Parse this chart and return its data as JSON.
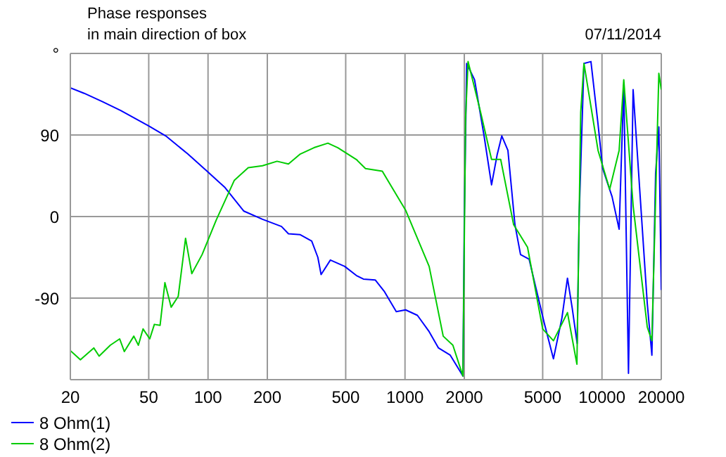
{
  "chart_data": {
    "type": "line",
    "title": "Phase responses",
    "subtitle": "in main direction of box",
    "annotations": [
      "07/11/2014"
    ],
    "log": "x",
    "xlim": [
      20,
      20000
    ],
    "xticks": [
      20,
      50,
      100,
      200,
      500,
      1000,
      2000,
      5000,
      10000,
      20000
    ],
    "ylim": [
      -180,
      180
    ],
    "yticks": [
      -90,
      0,
      90,
      {
        "value": 180,
        "label": "°"
      }
    ],
    "grid": true,
    "legend": "bottom left",
    "marker": "none",
    "series": [
      {
        "name": "8 Ohm(1)",
        "color": "#0000ff",
        "x": [
          20,
          23.5,
          29,
          36,
          50,
          61,
          79,
          100,
          122,
          152,
          189,
          236,
          256,
          294,
          336,
          361,
          375,
          418,
          494,
          566,
          615,
          706,
          787,
          903,
          1007,
          1156,
          1326,
          1479,
          1697,
          1968,
          2000,
          2056,
          2255,
          2520,
          2750,
          2935,
          3100,
          3330,
          3615,
          3860,
          4265,
          5085,
          5670,
          6260,
          6680,
          7060,
          7480,
          7660,
          8100,
          8790,
          9550,
          10080,
          11250,
          12220,
          12900,
          13630,
          14390,
          15630,
          16980,
          17920,
          18720,
          19440,
          20000
        ],
        "values": [
          142,
          136,
          127,
          117,
          100,
          89,
          69,
          49,
          32,
          6,
          -3,
          -11,
          -19,
          -20,
          -27,
          -45,
          -64,
          -48,
          -55,
          -65,
          -69,
          -70,
          -83,
          -105,
          -103,
          -109,
          -127,
          -145,
          -153,
          -176,
          -4,
          169,
          151,
          89,
          35,
          68,
          89,
          73,
          -9,
          -42,
          -47,
          -117,
          -157,
          -112,
          -68,
          -101,
          -140,
          2,
          169,
          171,
          102,
          53,
          22,
          -14,
          145,
          -173,
          140,
          22,
          -96,
          -153,
          48,
          99,
          -81
        ]
      },
      {
        "name": "8 Ohm(2)",
        "color": "#00cc00",
        "x": [
          20,
          22.5,
          26.3,
          28,
          31.9,
          35.6,
          37.6,
          42,
          44.3,
          46.8,
          50.6,
          53.4,
          57.1,
          60.4,
          65,
          70.6,
          76.9,
          82.7,
          93.3,
          110,
          136,
          160,
          189,
          224,
          256,
          294,
          345,
          406,
          456,
          566,
          630,
          767,
          1007,
          1326,
          1563,
          1750,
          1968,
          2030,
          2090,
          2420,
          2750,
          3060,
          3560,
          4190,
          5000,
          5670,
          6680,
          7460,
          7800,
          8100,
          9550,
          10940,
          12220,
          12900,
          14390,
          16980,
          17920,
          19440,
          20000
        ],
        "values": [
          -148,
          -158,
          -145,
          -154,
          -142,
          -135,
          -149,
          -132,
          -142,
          -124,
          -135,
          -119,
          -120,
          -73,
          -100,
          -88,
          -24,
          -63,
          -42,
          -4,
          40,
          54,
          56,
          61,
          58,
          69,
          76,
          81,
          76,
          63,
          53,
          50,
          7,
          -55,
          -132,
          -142,
          -176,
          109,
          171,
          115,
          63,
          63,
          -9,
          -34,
          -124,
          -137,
          -106,
          -163,
          115,
          169,
          73,
          30,
          73,
          151,
          12,
          -122,
          -137,
          158,
          140
        ]
      }
    ]
  }
}
